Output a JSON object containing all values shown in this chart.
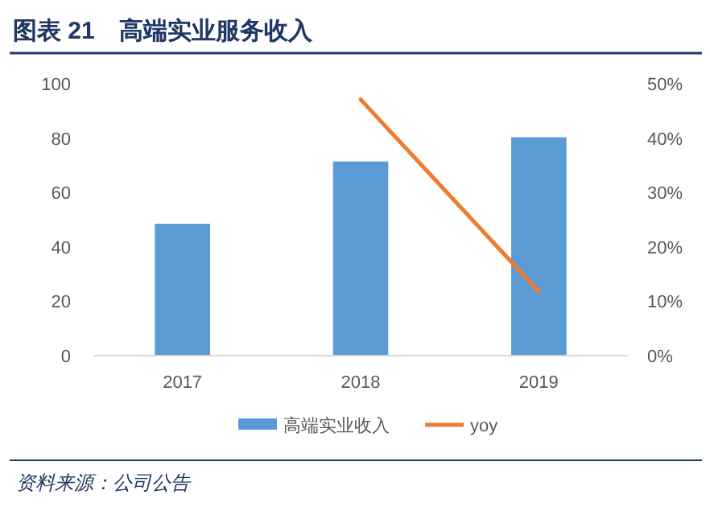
{
  "chart_data": {
    "type": "bar",
    "title": "图表 21　高端实业服务收入",
    "categories": [
      "2017",
      "2018",
      "2019"
    ],
    "series": [
      {
        "name": "高端实业收入",
        "color": "#5b9bd5",
        "values": [
          48.5,
          71.4,
          80.3
        ]
      },
      {
        "name": "yoy",
        "type": "line",
        "axis": "y2",
        "color": "#ed7d31",
        "values": [
          null,
          47.1,
          11.8
        ]
      }
    ],
    "ylim": [
      0,
      100
    ],
    "yticks": [
      0,
      20,
      40,
      60,
      80,
      100
    ],
    "y2lim": [
      0,
      50
    ],
    "y2ticks": [
      {
        "value": 0,
        "label": "0%"
      },
      {
        "value": 10,
        "label": "10%"
      },
      {
        "value": 20,
        "label": "20%"
      },
      {
        "value": 30,
        "label": "30%"
      },
      {
        "value": 40,
        "label": "40%"
      },
      {
        "value": 50,
        "label": "50%"
      }
    ],
    "legend": "bottom",
    "grid": false,
    "marker": "none",
    "annotations": [
      "资料来源：公司公告"
    ]
  }
}
